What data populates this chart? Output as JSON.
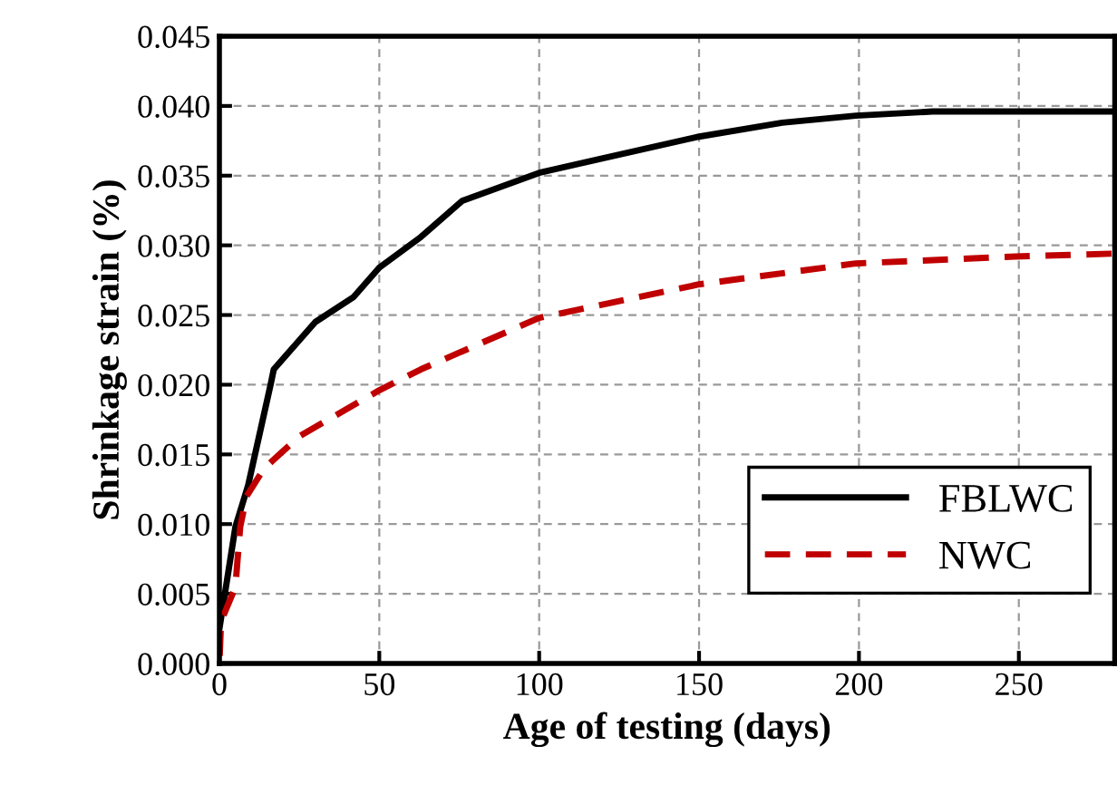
{
  "chart_data": {
    "type": "line",
    "xlabel": "Age of testing (days)",
    "ylabel": "Shrinkage strain (%)",
    "xlim": [
      0,
      280
    ],
    "xticks": [
      0,
      50,
      100,
      150,
      200,
      250
    ],
    "ylim": [
      0,
      0.045
    ],
    "yticks": [
      {
        "value": 0,
        "label": "0.000"
      },
      {
        "value": 0.005,
        "label": "0.005"
      },
      {
        "value": 0.01,
        "label": "0.010"
      },
      {
        "value": 0.015,
        "label": "0.015"
      },
      {
        "value": 0.02,
        "label": "0.020"
      },
      {
        "value": 0.025,
        "label": "0.025"
      },
      {
        "value": 0.03,
        "label": "0.030"
      },
      {
        "value": 0.035,
        "label": "0.035"
      },
      {
        "value": 0.04,
        "label": "0.040"
      },
      {
        "value": 0.045,
        "label": "0.045"
      }
    ],
    "grid": true,
    "legend": "bottom right",
    "series": [
      {
        "name": "FBLWC",
        "color": "#000000",
        "line_style": "solid",
        "x": [
          0,
          5,
          9,
          16,
          17,
          30,
          42,
          50,
          63,
          76,
          100,
          119,
          150,
          176,
          199,
          223,
          279
        ],
        "values": [
          0.0025,
          0.0098,
          0.0128,
          0.02,
          0.0211,
          0.0245,
          0.0263,
          0.0284,
          0.0306,
          0.0332,
          0.0352,
          0.0362,
          0.0378,
          0.0388,
          0.0393,
          0.0396,
          0.0396
        ]
      },
      {
        "name": "NWC",
        "color": "#c00000",
        "line_style": "dashed",
        "x": [
          0,
          0.5,
          5,
          6.5,
          8.5,
          14,
          25,
          50,
          63,
          100,
          150,
          199,
          249,
          279
        ],
        "values": [
          0,
          0.003,
          0.0055,
          0.0098,
          0.012,
          0.014,
          0.0163,
          0.0196,
          0.0211,
          0.0248,
          0.0272,
          0.0287,
          0.0292,
          0.0294
        ]
      }
    ]
  }
}
